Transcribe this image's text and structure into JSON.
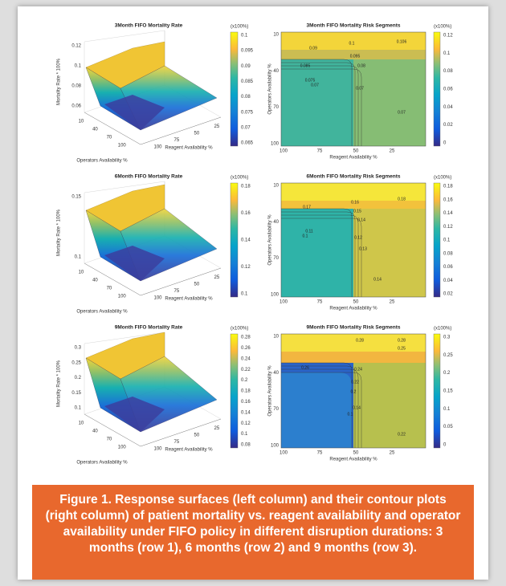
{
  "figure": {
    "panels": [
      {
        "type": "surface",
        "title": "3Month FIFO Mortality Rate",
        "z_label": "Mortality Rate * 100%",
        "z_ticks": [
          "0.06",
          "0.08",
          "0.1",
          "0.12"
        ],
        "x_label": "Operators Availability %",
        "x_ticks": [
          "10",
          "40",
          "70",
          "100"
        ],
        "y_label": "Reagent Availability %",
        "y_ticks": [
          "100",
          "75",
          "50",
          "25"
        ],
        "colorbar_unit": "(x100%)",
        "colorbar_ticks": [
          "0.1",
          "0.095",
          "0.09",
          "0.085",
          "0.08",
          "0.075",
          "0.07",
          "0.065"
        ]
      },
      {
        "type": "contour",
        "title": "3Month FIFO Mortality Risk Segments",
        "y_label": "Operators Availability %",
        "y_ticks": [
          "10",
          "40",
          "70",
          "100"
        ],
        "x_label": "Reagent Availability %",
        "x_ticks": [
          "100",
          "75",
          "50",
          "25"
        ],
        "colorbar_unit": "(x100%)",
        "colorbar_ticks": [
          "0.12",
          "0.1",
          "0.08",
          "0.06",
          "0.04",
          "0.02",
          "0"
        ],
        "contour_labels": [
          "0.09",
          "0.1",
          "0.106",
          "0.085",
          "0.095",
          "0.08",
          "0.075",
          "0.07",
          "0.07",
          "0.07"
        ]
      },
      {
        "type": "surface",
        "title": "6Month FIFO Mortality Rate",
        "z_label": "Mortality Rate * 100%",
        "z_ticks": [
          "0.1",
          "0.15"
        ],
        "x_label": "Operators Availability %",
        "x_ticks": [
          "10",
          "40",
          "70",
          "100"
        ],
        "y_label": "Reagent Availability %",
        "y_ticks": [
          "100",
          "75",
          "50",
          "25"
        ],
        "colorbar_unit": "(x100%)",
        "colorbar_ticks": [
          "0.18",
          "0.16",
          "0.14",
          "0.12",
          "0.1"
        ]
      },
      {
        "type": "contour",
        "title": "6Month FIFO Mortality Risk Segments",
        "y_label": "Operators Availability %",
        "y_ticks": [
          "10",
          "40",
          "70",
          "100"
        ],
        "x_label": "Reagent Availability %",
        "x_ticks": [
          "100",
          "75",
          "50",
          "25"
        ],
        "colorbar_unit": "(x100%)",
        "colorbar_ticks": [
          "0.18",
          "0.16",
          "0.14",
          "0.12",
          "0.1",
          "0.08",
          "0.06",
          "0.04",
          "0.02"
        ],
        "contour_labels": [
          "0.17",
          "0.16",
          "0.15",
          "0.14",
          "0.1",
          "0.11",
          "0.12",
          "0.13",
          "0.14",
          "0.18"
        ]
      },
      {
        "type": "surface",
        "title": "9Month FIFO Mortality Rate",
        "z_label": "Mortality Rate * 100%",
        "z_ticks": [
          "0.1",
          "0.15",
          "0.2",
          "0.25",
          "0.3"
        ],
        "x_label": "Operators Availability %",
        "x_ticks": [
          "10",
          "40",
          "70",
          "100"
        ],
        "y_label": "Reagent Availability %",
        "y_ticks": [
          "100",
          "75",
          "50",
          "25"
        ],
        "colorbar_unit": "(x100%)",
        "colorbar_ticks": [
          "0.28",
          "0.26",
          "0.24",
          "0.22",
          "0.2",
          "0.18",
          "0.16",
          "0.14",
          "0.12",
          "0.1",
          "0.08"
        ]
      },
      {
        "type": "contour",
        "title": "9Month FIFO Mortality Risk Segments",
        "y_label": "Operators Availability %",
        "y_ticks": [
          "10",
          "40",
          "70",
          "100"
        ],
        "x_label": "Reagent Availability %",
        "x_ticks": [
          "100",
          "75",
          "50",
          "25"
        ],
        "colorbar_unit": "(x100%)",
        "colorbar_ticks": [
          "0.3",
          "0.25",
          "0.2",
          "0.15",
          "0.1",
          "0.05",
          "0"
        ],
        "contour_labels": [
          "0.28",
          "0.26",
          "0.24",
          "0.22",
          "0.2",
          "0.14",
          "0.1",
          "0.25",
          "0.22",
          "0.28"
        ]
      }
    ],
    "caption": "Figure 1. Response surfaces (left column) and their contour plots (right column) of patient mortality vs. reagent availability and operator availability under FIFO policy in different disruption durations: 3 months (row 1), 6 months (row 2) and 9 months (row 3)."
  }
}
